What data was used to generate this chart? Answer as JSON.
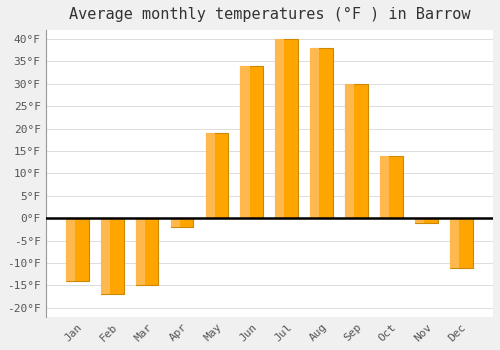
{
  "title": "Average monthly temperatures (°F ) in Barrow",
  "months": [
    "Jan",
    "Feb",
    "Mar",
    "Apr",
    "May",
    "Jun",
    "Jul",
    "Aug",
    "Sep",
    "Oct",
    "Nov",
    "Dec"
  ],
  "values": [
    -14,
    -17,
    -15,
    -2,
    19,
    34,
    40,
    38,
    30,
    14,
    -1,
    -11
  ],
  "bar_color_main": "#FFA500",
  "bar_color_light": "#FFB84D",
  "bar_edge_color": "#CC8800",
  "background_color": "#F0F0F0",
  "plot_bg_color": "#FFFFFF",
  "grid_color": "#DDDDDD",
  "ylim": [
    -22,
    42
  ],
  "yticks": [
    -20,
    -15,
    -10,
    -5,
    0,
    5,
    10,
    15,
    20,
    25,
    30,
    35,
    40
  ],
  "ytick_labels": [
    "-20°F",
    "-15°F",
    "-10°F",
    "-5°F",
    "0°F",
    "5°F",
    "10°F",
    "15°F",
    "20°F",
    "25°F",
    "30°F",
    "35°F",
    "40°F"
  ],
  "title_fontsize": 11,
  "tick_fontsize": 8,
  "figsize": [
    5.0,
    3.5
  ],
  "dpi": 100
}
